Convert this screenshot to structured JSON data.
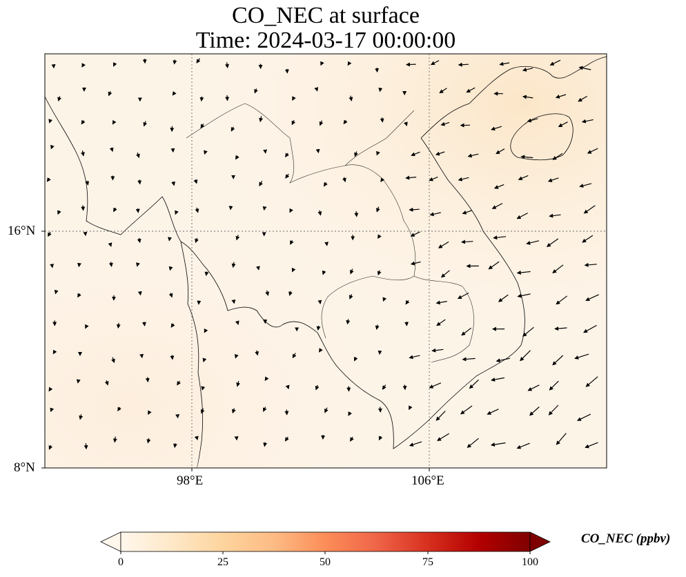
{
  "title": {
    "line1": "CO_NEC at surface",
    "line2": "Time: 2024-03-17 00:00:00"
  },
  "map": {
    "lat_ticks": [
      "16°N",
      "8°N"
    ],
    "lon_ticks": [
      "98°E",
      "106°E"
    ],
    "gridlines": "dotted",
    "wind_vectors": true
  },
  "colorbar": {
    "label": "CO_NEC (ppbv)",
    "ticks": [
      "0",
      "25",
      "50",
      "75",
      "100"
    ],
    "colormap": [
      "#fff7ec",
      "#fee8c8",
      "#fdd49e",
      "#fdbb84",
      "#fc8d59",
      "#ef6548",
      "#d7301f",
      "#b30000",
      "#7f0000"
    ],
    "extend": "both"
  },
  "colors": {
    "field_base": "#fdf3e6",
    "field_light": "#fef8ef",
    "coast": "#000000"
  }
}
